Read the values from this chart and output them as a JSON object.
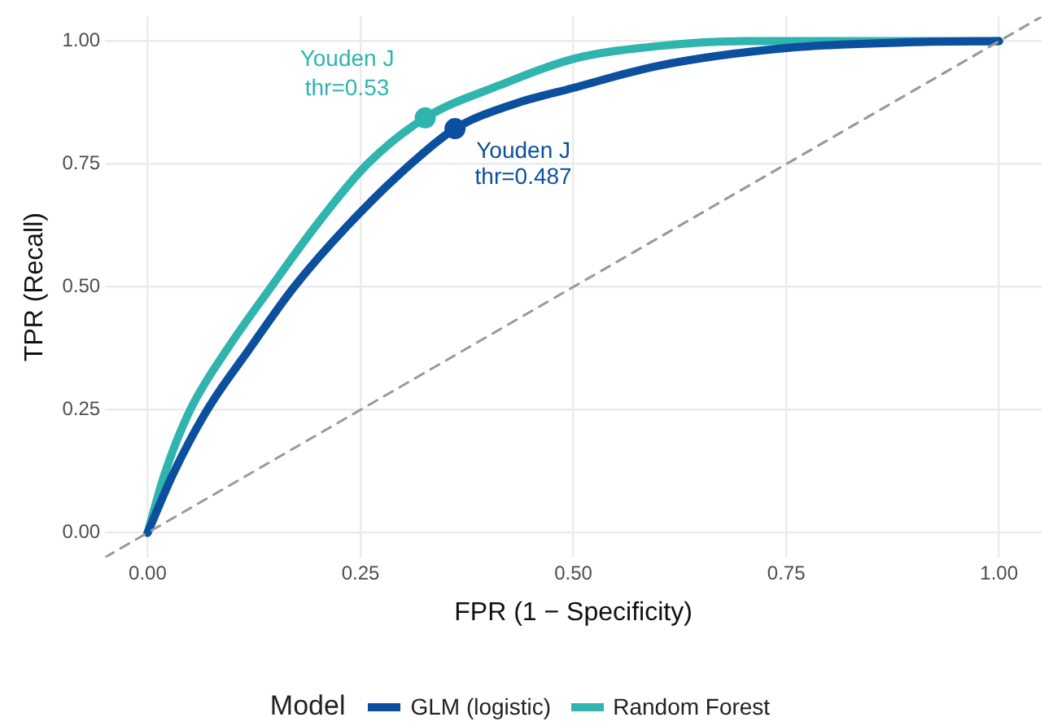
{
  "chart_data": {
    "type": "line",
    "xlabel": "FPR (1 − Specificity)",
    "ylabel": "TPR (Recall)",
    "legend_title": "Model",
    "legend": "bottom",
    "grid": true,
    "xlim": [
      -0.05,
      1.05
    ],
    "ylim": [
      -0.05,
      1.05
    ],
    "xticks": [
      {
        "value": 0,
        "label": "0.00"
      },
      {
        "value": 0.25,
        "label": "0.25"
      },
      {
        "value": 0.5,
        "label": "0.50"
      },
      {
        "value": 0.75,
        "label": "0.75"
      },
      {
        "value": 1,
        "label": "1.00"
      }
    ],
    "yticks": [
      {
        "value": 0,
        "label": "0.00"
      },
      {
        "value": 0.25,
        "label": "0.25"
      },
      {
        "value": 0.5,
        "label": "0.50"
      },
      {
        "value": 0.75,
        "label": "0.75"
      },
      {
        "value": 1,
        "label": "1.00"
      }
    ],
    "series": [
      {
        "type": "line",
        "color": "#999999",
        "line_style": "dashed",
        "x": [
          -0.05,
          1.05
        ],
        "values": [
          -0.05,
          1.05
        ]
      },
      {
        "type": "line",
        "name": "GLM (logistic)",
        "color": "#0b4f9e",
        "x": [
          0,
          0.03,
          0.07,
          0.12,
          0.172,
          0.235,
          0.309,
          0.361,
          0.43,
          0.5,
          0.6,
          0.75,
          0.9,
          1
        ],
        "values": [
          0,
          0.12,
          0.25,
          0.375,
          0.5,
          0.625,
          0.75,
          0.822,
          0.872,
          0.905,
          0.95,
          0.986,
          0.998,
          1
        ]
      },
      {
        "type": "line",
        "name": "Random Forest",
        "color": "#2fb5ad",
        "x": [
          0,
          0.02,
          0.05,
          0.094,
          0.145,
          0.2,
          0.258,
          0.326,
          0.413,
          0.5,
          0.6,
          0.7,
          1
        ],
        "values": [
          0,
          0.12,
          0.25,
          0.375,
          0.5,
          0.63,
          0.75,
          0.844,
          0.91,
          0.964,
          0.99,
          1,
          1
        ]
      },
      {
        "type": "scatter",
        "color": "#0b4f9e",
        "x": [
          0.361
        ],
        "values": [
          0.822
        ]
      },
      {
        "type": "scatter",
        "color": "#2fb5ad",
        "x": [
          0.326
        ],
        "values": [
          0.844
        ]
      }
    ],
    "annotations": [
      {
        "text": "Youden J\nthr=0.487",
        "x": 0.361,
        "y": 0.822
      },
      {
        "text": "Youden J\nthr=0.53",
        "x": 0.326,
        "y": 0.844
      }
    ]
  }
}
